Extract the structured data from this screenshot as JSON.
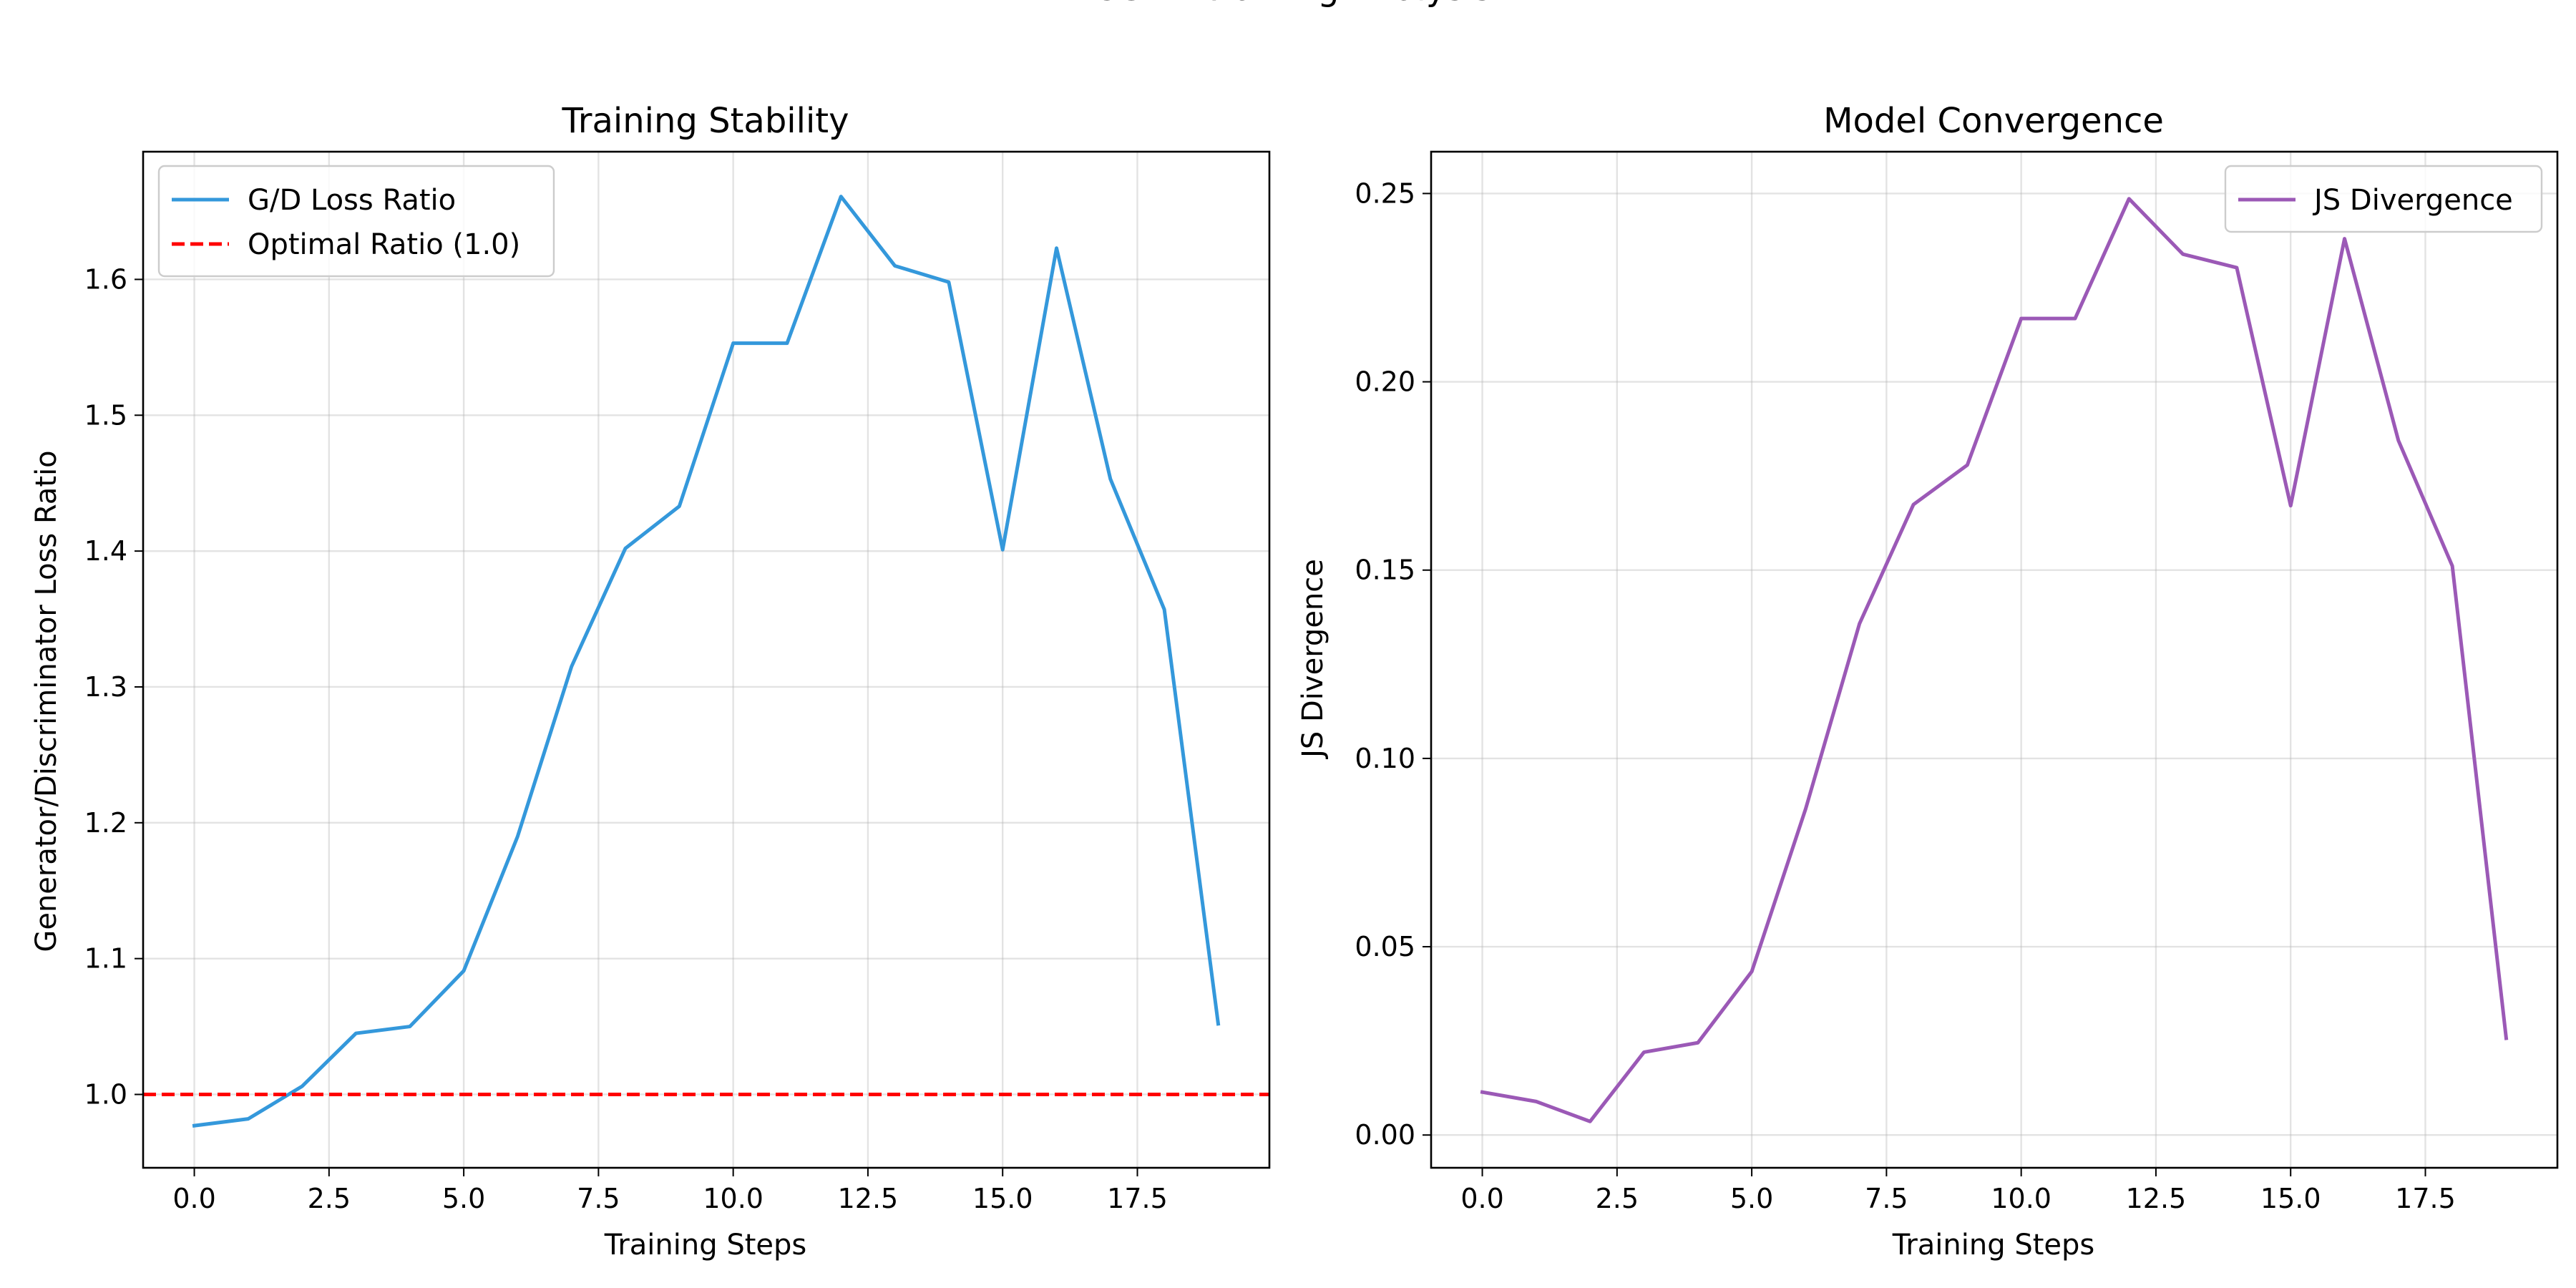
{
  "figure": {
    "suptitle": "CGAN Training Analysis"
  },
  "chart_data": [
    {
      "type": "line",
      "title": "Training Stability",
      "xlabel": "Training Steps",
      "ylabel": "Generator/Discriminator Loss Ratio",
      "x": [
        0,
        1,
        2,
        3,
        4,
        5,
        6,
        7,
        8,
        9,
        10,
        11,
        12,
        13,
        14,
        15,
        16,
        17,
        18,
        19
      ],
      "xlim": [
        -0.95,
        19.95
      ],
      "ylim": [
        0.946,
        1.694
      ],
      "xticks": [
        0.0,
        2.5,
        5.0,
        7.5,
        10.0,
        12.5,
        15.0,
        17.5
      ],
      "xtick_labels": [
        "0.0",
        "2.5",
        "5.0",
        "7.5",
        "10.0",
        "12.5",
        "15.0",
        "17.5"
      ],
      "yticks": [
        1.0,
        1.1,
        1.2,
        1.3,
        1.4,
        1.5,
        1.6
      ],
      "ytick_labels": [
        "1.0",
        "1.1",
        "1.2",
        "1.3",
        "1.4",
        "1.5",
        "1.6"
      ],
      "grid": true,
      "legend_position": "upper-left",
      "series": [
        {
          "name": "G/D Loss Ratio",
          "color": "#3498db",
          "style": "solid",
          "values": [
            0.977,
            0.982,
            1.006,
            1.045,
            1.05,
            1.091,
            1.19,
            1.315,
            1.402,
            1.433,
            1.553,
            1.553,
            1.661,
            1.61,
            1.598,
            1.401,
            1.623,
            1.453,
            1.357,
            1.052
          ]
        }
      ],
      "reference_lines": [
        {
          "name": "Optimal Ratio (1.0)",
          "y": 1.0,
          "color": "#ff0000",
          "style": "dashed"
        }
      ]
    },
    {
      "type": "line",
      "title": "Model Convergence",
      "xlabel": "Training Steps",
      "ylabel": "JS Divergence",
      "x": [
        0,
        1,
        2,
        3,
        4,
        5,
        6,
        7,
        8,
        9,
        10,
        11,
        12,
        13,
        14,
        15,
        16,
        17,
        18,
        19
      ],
      "xlim": [
        -0.95,
        19.95
      ],
      "ylim": [
        -0.0087,
        0.2611
      ],
      "xticks": [
        0.0,
        2.5,
        5.0,
        7.5,
        10.0,
        12.5,
        15.0,
        17.5
      ],
      "xtick_labels": [
        "0.0",
        "2.5",
        "5.0",
        "7.5",
        "10.0",
        "12.5",
        "15.0",
        "17.5"
      ],
      "yticks": [
        0.0,
        0.05,
        0.1,
        0.15,
        0.2,
        0.25
      ],
      "ytick_labels": [
        "0.00",
        "0.05",
        "0.10",
        "0.15",
        "0.20",
        "0.25"
      ],
      "grid": true,
      "legend_position": "upper-right",
      "series": [
        {
          "name": "JS Divergence",
          "color": "#9b59b6",
          "style": "solid",
          "values": [
            0.0114,
            0.0089,
            0.0036,
            0.022,
            0.0245,
            0.0434,
            0.0866,
            0.1358,
            0.1674,
            0.1779,
            0.2168,
            0.2168,
            0.2486,
            0.2339,
            0.2303,
            0.1671,
            0.238,
            0.1844,
            0.1511,
            0.0257
          ]
        }
      ]
    }
  ]
}
